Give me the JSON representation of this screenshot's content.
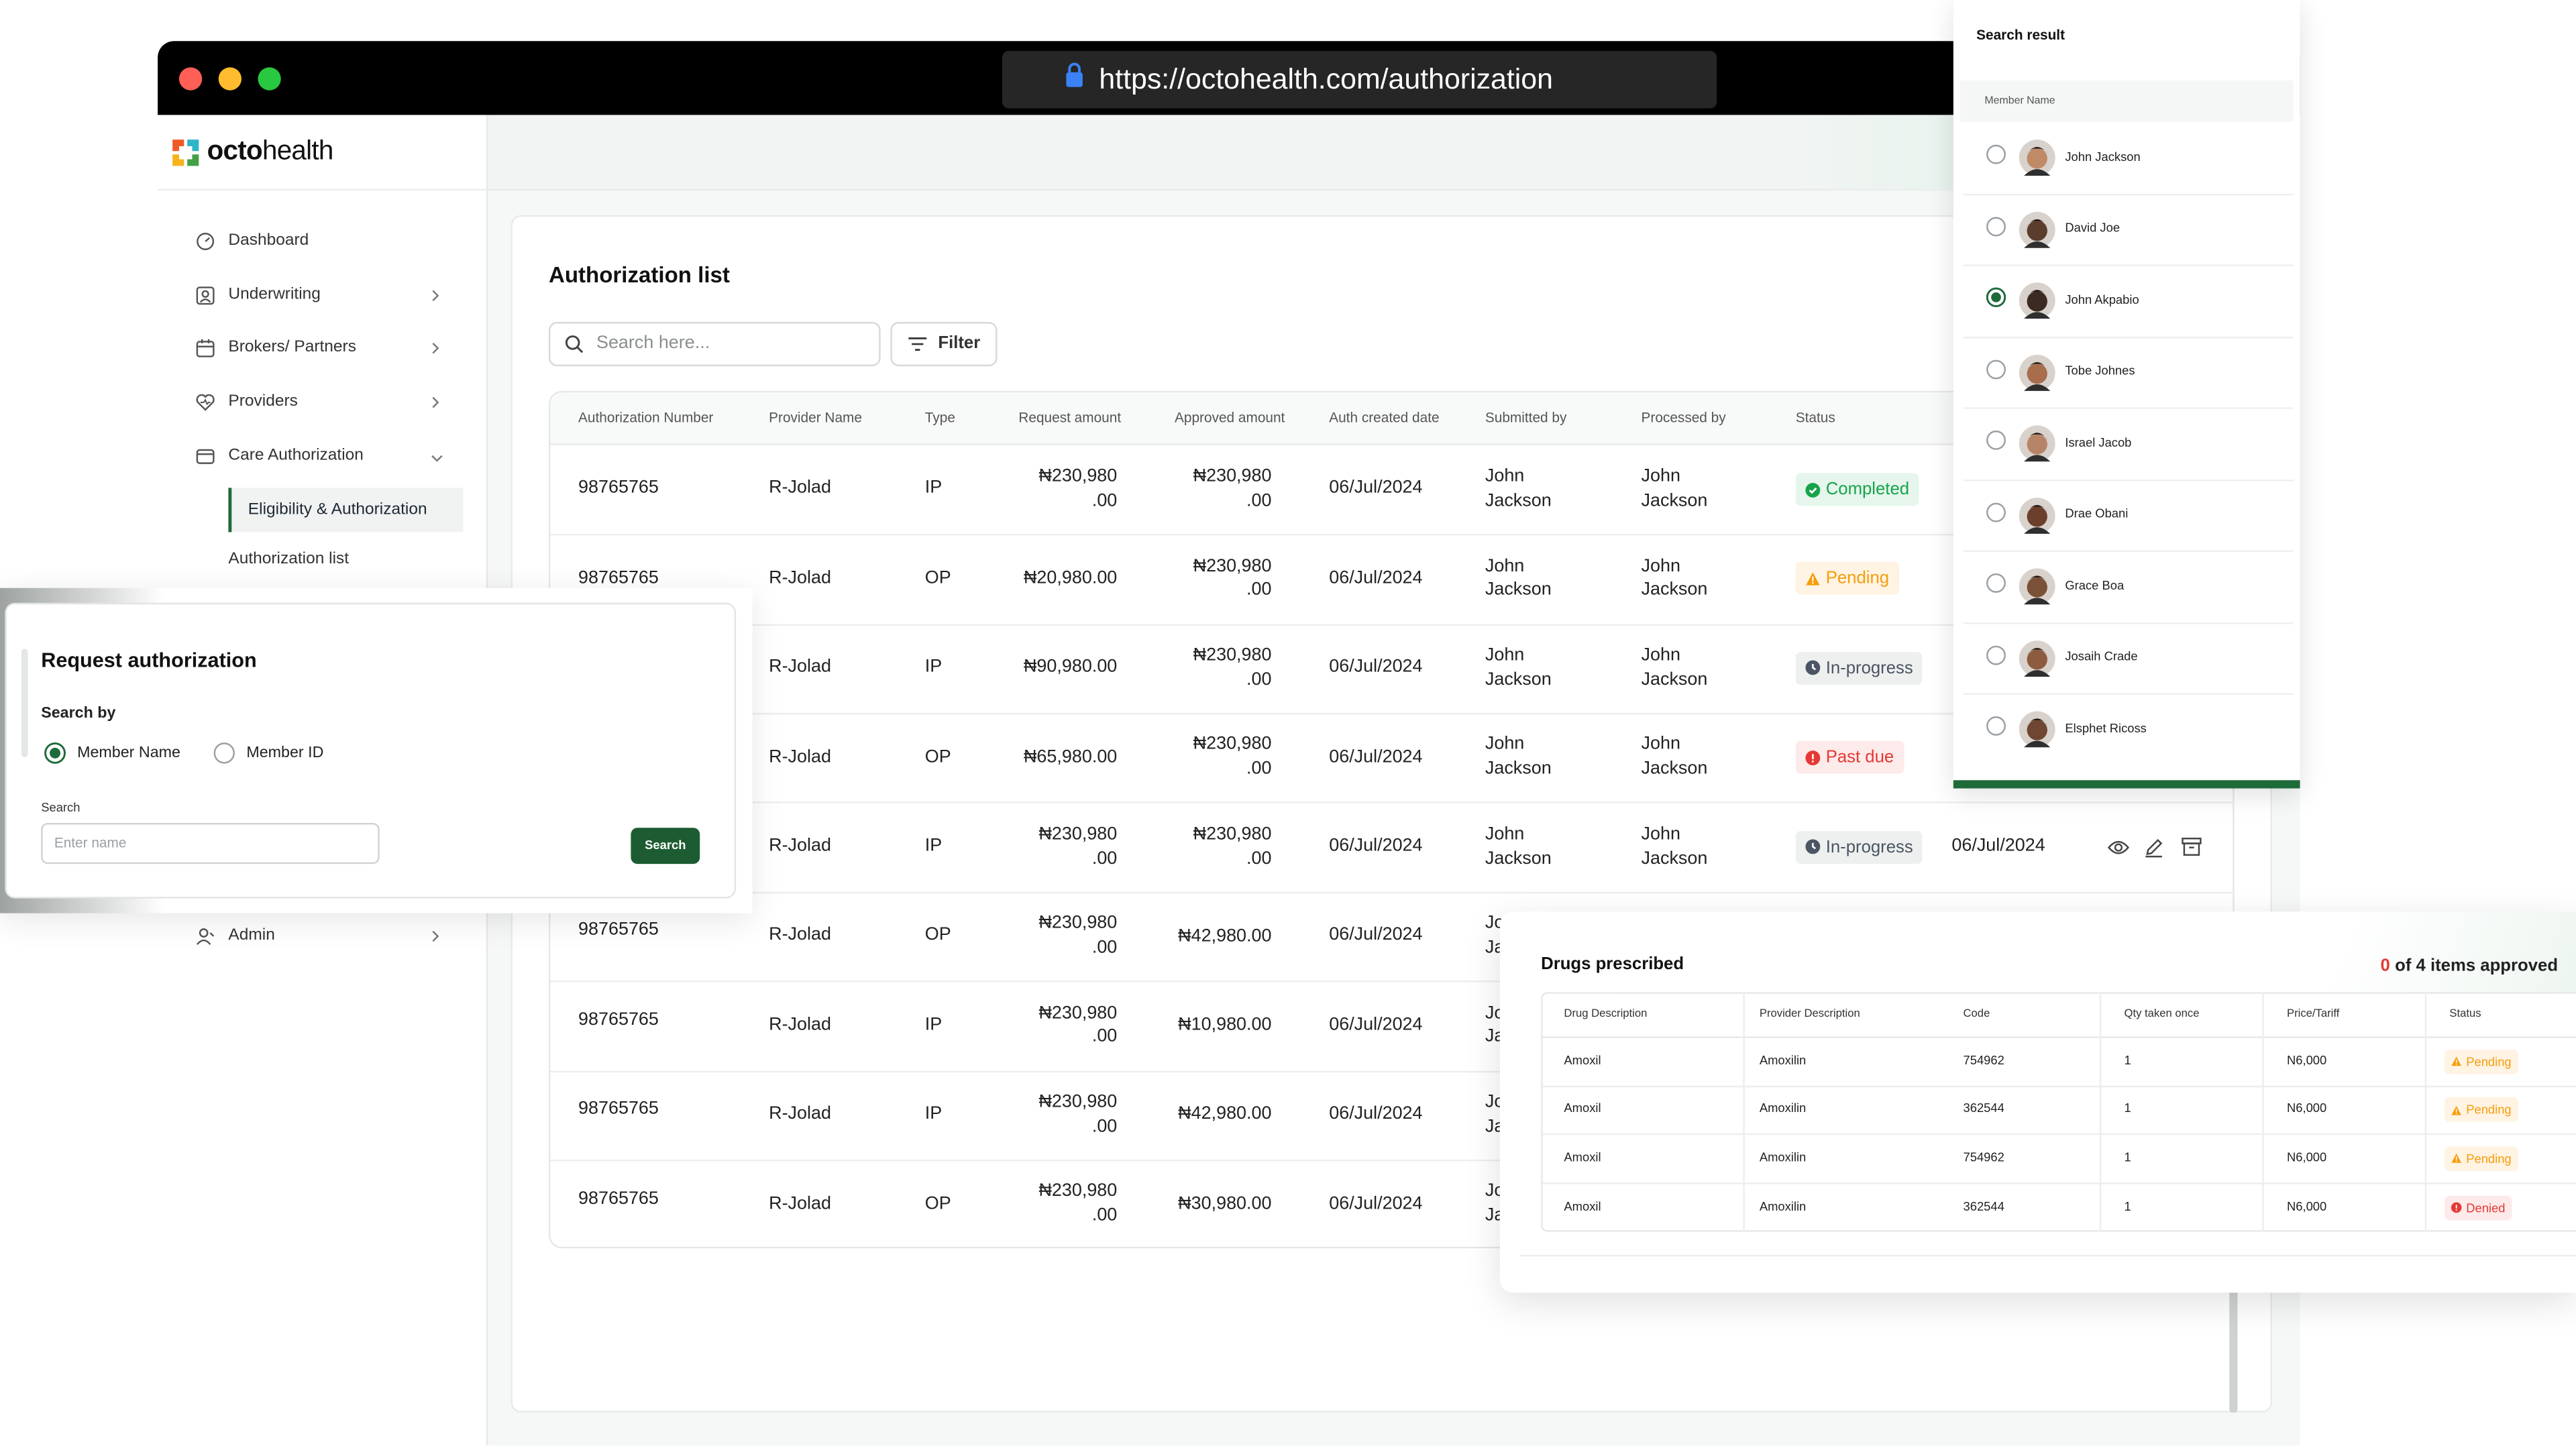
{
  "browser": {
    "url": "https://octohealth.com/authorization"
  },
  "brand": {
    "bold": "octo",
    "light": "health"
  },
  "sidebar": {
    "items": [
      "Dashboard",
      "Underwriting",
      "Brokers/ Partners",
      "Providers",
      "Care Authorization",
      "Eligibility & Authorization",
      "Authorization list",
      "Admin"
    ]
  },
  "main": {
    "title": "Authorization list",
    "search_placeholder": "Search here...",
    "filter": "Filter",
    "columns": [
      "Authorization Number",
      "Provider Name",
      "Type",
      "Request amount",
      "Approved amount",
      "Auth created date",
      "Submitted by",
      "Processed by",
      "Status",
      null
    ],
    "rows": [
      [
        "98765765",
        "R-Jolad",
        "IP",
        "₦230,980.00",
        "₦230,980.00",
        "06/Jul/2024",
        "John Jackson",
        "John Jackson",
        {
          "text": "Completed",
          "tone": "success"
        },
        null
      ],
      [
        "98765765",
        "R-Jolad",
        "OP",
        "₦20,980.00",
        "₦230,980.00",
        "06/Jul/2024",
        "John Jackson",
        "John Jackson",
        {
          "text": "Pending",
          "tone": "warning"
        },
        null
      ],
      [
        null,
        "R-Jolad",
        "IP",
        "₦90,980.00",
        "₦230,980.00",
        "06/Jul/2024",
        "John Jackson",
        "John Jackson",
        {
          "text": "In-progress",
          "tone": "neutral"
        },
        null
      ],
      [
        null,
        "R-Jolad",
        "OP",
        "₦65,980.00",
        "₦230,980.00",
        "06/Jul/2024",
        "John Jackson",
        "John Jackson",
        {
          "text": "Past due",
          "tone": "danger"
        },
        null
      ],
      [
        null,
        "R-Jolad",
        "IP",
        "₦230,980.00",
        "₦230,980.00",
        "06/Jul/2024",
        "John Jackson",
        "John Jackson",
        {
          "text": "In-progress",
          "tone": "neutral"
        },
        "06/Jul/2024"
      ],
      [
        "98765765",
        "R-Jolad",
        "OP",
        "₦230,980.00",
        "₦42,980.00",
        "06/Jul/2024",
        "John Jackson",
        null,
        null,
        null
      ],
      [
        "98765765",
        "R-Jolad",
        "IP",
        "₦230,980.00",
        "₦10,980.00",
        "06/Jul/2024",
        "John Jackson",
        null,
        null,
        null
      ],
      [
        "98765765",
        "R-Jolad",
        "IP",
        "₦230,980.00",
        "₦42,980.00",
        "06/Jul/2024",
        "John Jackson",
        null,
        null,
        null
      ],
      [
        "98765765",
        "R-Jolad",
        "OP",
        "₦230,980.00",
        "₦30,980.00",
        "06/Jul/2024",
        "John Jackson",
        null,
        null,
        null
      ]
    ]
  },
  "request_modal": {
    "title": "Request authorization",
    "search_by": "Search by",
    "options": [
      {
        "label": "Member Name",
        "selected": true
      },
      {
        "label": "Member ID",
        "selected": false
      }
    ],
    "search_label": "Search",
    "input_placeholder": "Enter name",
    "button": "Search"
  },
  "search_result": {
    "title": "Search result",
    "column": "Member Name",
    "members": [
      {
        "name": "John Jackson",
        "selected": false
      },
      {
        "name": "David Joe",
        "selected": false
      },
      {
        "name": "John Akpabio",
        "selected": true
      },
      {
        "name": "Tobe Johnes",
        "selected": false
      },
      {
        "name": "Israel Jacob",
        "selected": false
      },
      {
        "name": "Drae Obani",
        "selected": false
      },
      {
        "name": "Grace Boa",
        "selected": false
      },
      {
        "name": "Josaih Crade",
        "selected": false
      },
      {
        "name": "Elsphet Ricoss",
        "selected": false
      }
    ]
  },
  "drugs": {
    "title": "Drugs prescribed",
    "approved_count": "0",
    "approved_suffix": "of 4 items approved",
    "columns": [
      "Drug Description",
      "Provider Description",
      "Code",
      "Qty taken once",
      "Price/Tariff",
      "Status"
    ],
    "rows": [
      [
        "Amoxil",
        "Amoxilin",
        "754962",
        "1",
        "N6,000",
        {
          "text": "Pending",
          "tone": "warning"
        }
      ],
      [
        "Amoxil",
        "Amoxilin",
        "362544",
        "1",
        "N6,000",
        {
          "text": "Pending",
          "tone": "warning"
        }
      ],
      [
        "Amoxil",
        "Amoxilin",
        "754962",
        "1",
        "N6,000",
        {
          "text": "Pending",
          "tone": "warning"
        }
      ],
      [
        "Amoxil",
        "Amoxilin",
        "362544",
        "1",
        "N6,000",
        {
          "text": "Denied",
          "tone": "danger"
        }
      ]
    ]
  }
}
